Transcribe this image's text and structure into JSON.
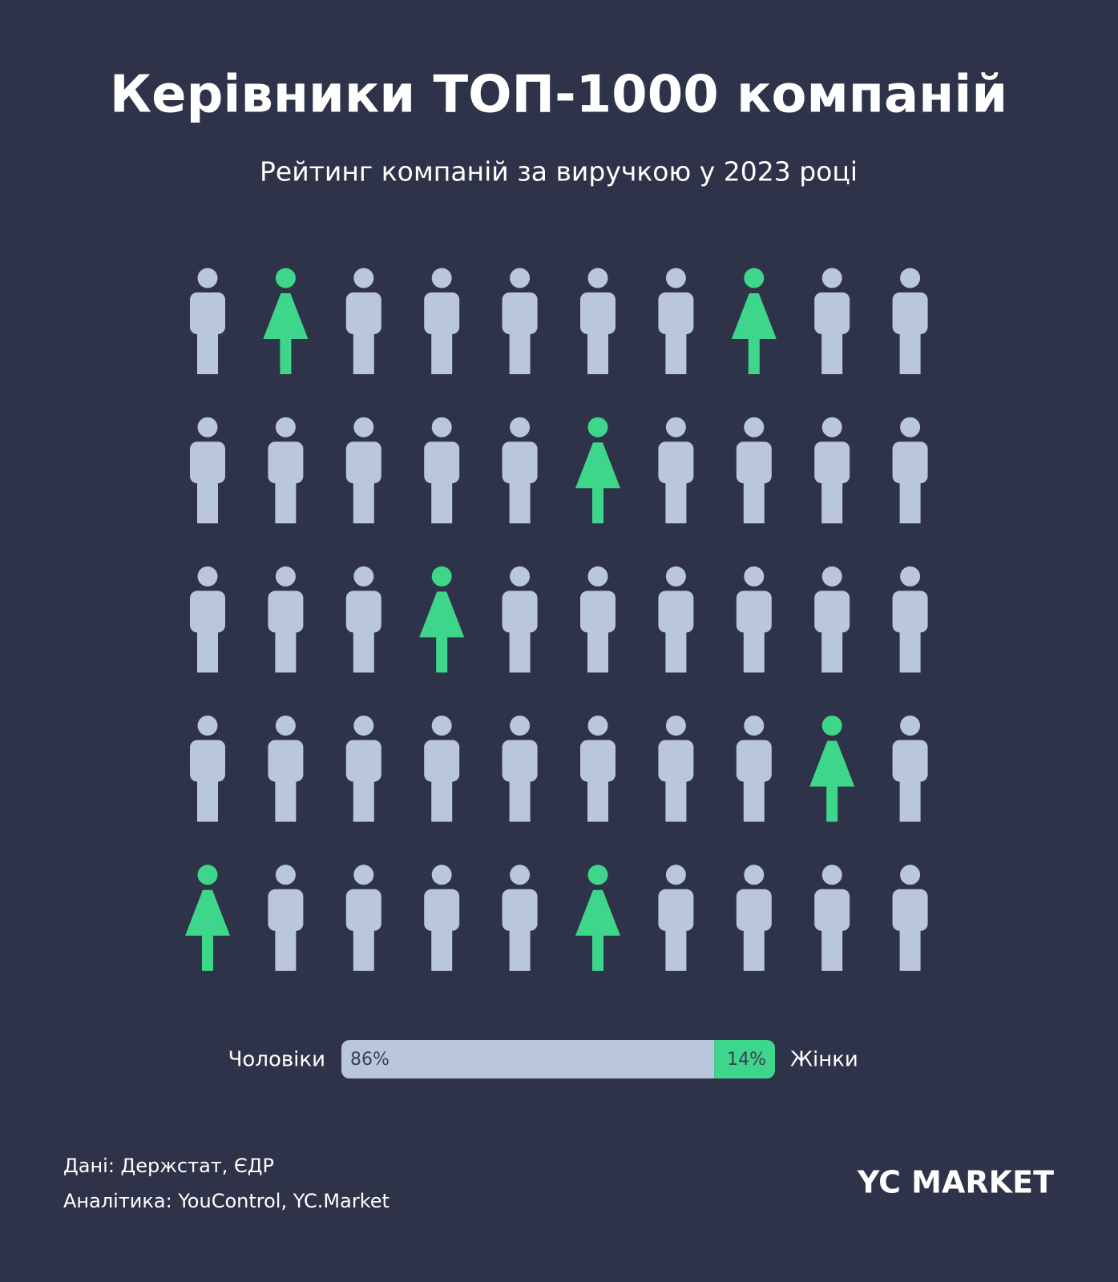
{
  "chart_data": {
    "type": "stacked-bar",
    "title": "Керівники ТОП-1000 компаній",
    "subtitle": "Рейтинг компаній за виручкою у 2023 році",
    "series": [
      {
        "name": "Чоловіки",
        "color": "#bac6dc",
        "values": [
          86
        ],
        "value_labels": [
          "86%"
        ]
      },
      {
        "name": "Жінки",
        "color": "#3ed68a",
        "values": [
          14
        ],
        "value_labels": [
          "14%"
        ]
      }
    ],
    "xlim": [
      0,
      100
    ],
    "pictogram": {
      "rows": 5,
      "cols": 10,
      "highlighted": [
        1,
        7,
        15,
        23,
        38,
        40,
        45
      ]
    }
  },
  "footer": {
    "source": "Дані: Держстат, ЄДР",
    "analytics": "Аналітика: YouControl, YC.Market",
    "logo": "YC MARKET"
  }
}
